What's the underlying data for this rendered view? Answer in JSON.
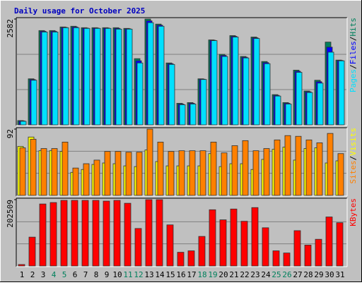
{
  "title": "Daily usage for October 2025",
  "chart_data": [
    {
      "type": "bar",
      "ylim": [
        0,
        2582
      ],
      "yticks": [
        2582
      ],
      "series": [
        {
          "name": "Hits",
          "color": "#00805c",
          "values": [
            105,
            1124,
            2301,
            2301,
            2389,
            2406,
            2371,
            2371,
            2371,
            2371,
            2354,
            1616,
            2582,
            2459,
            1511,
            527,
            544,
            1124,
            2073,
            1721,
            2178,
            1669,
            2143,
            1546,
            738,
            544,
            1335,
            826,
            1089,
            2020,
            1581
          ]
        },
        {
          "name": "Files",
          "color": "#0000ff",
          "values": [
            97,
            1106,
            2284,
            2284,
            2380,
            2389,
            2362,
            2362,
            2362,
            2354,
            2345,
            1564,
            2538,
            2433,
            1493,
            509,
            527,
            1115,
            2064,
            1695,
            2160,
            1651,
            2125,
            1520,
            720,
            527,
            1308,
            808,
            1054,
            1897,
            1572
          ]
        },
        {
          "name": "Pages",
          "color": "#00e0ff",
          "values": [
            88,
            1089,
            2266,
            2266,
            2371,
            2371,
            2354,
            2354,
            2354,
            2336,
            2336,
            1511,
            2494,
            2406,
            1475,
            492,
            509,
            1107,
            2055,
            1669,
            2143,
            1633,
            2108,
            1493,
            703,
            509,
            1282,
            790,
            1019,
            1774,
            1563
          ]
        }
      ]
    },
    {
      "type": "bar",
      "ylim": [
        0,
        92
      ],
      "yticks": [
        92
      ],
      "series": [
        {
          "name": "Visits",
          "color": "#ffff00",
          "values": [
            68,
            81,
            62,
            62,
            61,
            32,
            36,
            43,
            45,
            44,
            41,
            40,
            63,
            47,
            41,
            41,
            41,
            41,
            58,
            40,
            44,
            44,
            36,
            50,
            64,
            67,
            49,
            65,
            66,
            45,
            48
          ]
        },
        {
          "name": "Sites",
          "color": "#ff8000",
          "values": [
            66,
            78,
            65,
            65,
            74,
            38,
            44,
            49,
            61,
            61,
            60,
            60,
            92,
            74,
            61,
            62,
            62,
            62,
            74,
            59,
            69,
            76,
            62,
            65,
            77,
            83,
            82,
            77,
            73,
            86,
            58
          ]
        }
      ]
    },
    {
      "type": "bar",
      "ylim": [
        0,
        202509
      ],
      "yticks": [
        202509
      ],
      "categories": [
        "1",
        "2",
        "3",
        "4",
        "5",
        "6",
        "7",
        "8",
        "9",
        "10",
        "11",
        "12",
        "13",
        "14",
        "15",
        "16",
        "17",
        "18",
        "19",
        "20",
        "21",
        "22",
        "23",
        "24",
        "25",
        "26",
        "27",
        "28",
        "29",
        "30",
        "31"
      ],
      "highlight_indices": [
        3,
        4,
        10,
        11,
        17,
        18,
        24,
        25
      ],
      "highlight_color": "#00805c",
      "series": [
        {
          "name": "KBytes",
          "color": "#ff0000",
          "values": [
            4402,
            88048,
            189302,
            193707,
            200311,
            200311,
            200311,
            200311,
            198109,
            200311,
            191505,
            114462,
            202509,
            202509,
            125467,
            41822,
            46225,
            90249,
            171693,
            140876,
            173894,
            136474,
            178296,
            116662,
            46225,
            39621,
            107858,
            63834,
            81444,
            149680,
            132071
          ]
        }
      ]
    }
  ]
}
